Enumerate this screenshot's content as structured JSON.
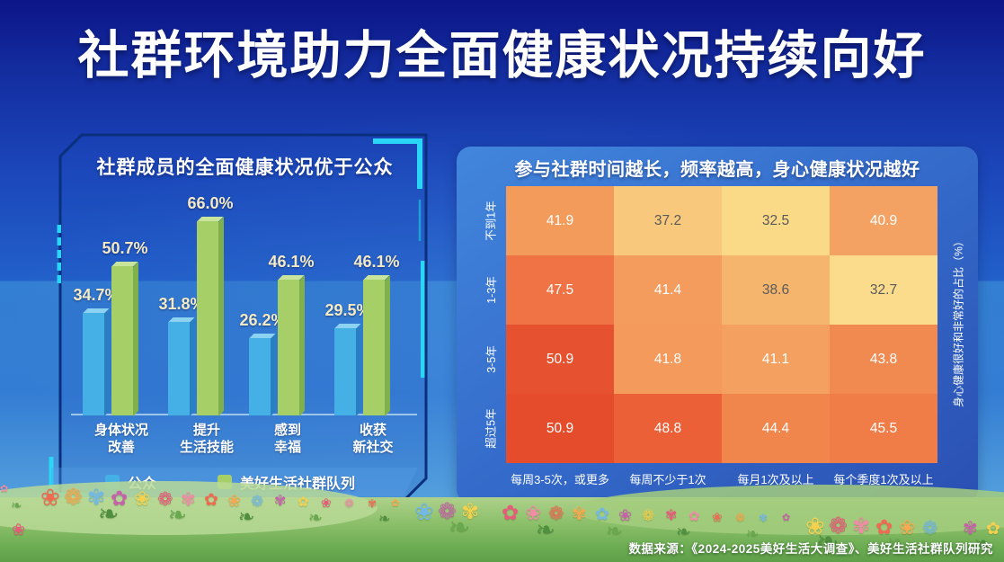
{
  "page": {
    "title": "社群环境助力全面健康状况持续向好",
    "source_note": "数据来源：《2024-2025美好生活大调查》、美好生活社群队列研究"
  },
  "colors": {
    "frame_accent": "#29d6f5",
    "frame_line": "#0a2f7c",
    "bar_value_label": "#f3eac5",
    "heatmap_text_light": "#ffffff",
    "heatmap_text_dark": "#5a5a5a"
  },
  "chart_data": [
    {
      "type": "bar",
      "title": "社群成员的全面健康状况优于公众",
      "categories": [
        [
          "身体状况",
          "改善"
        ],
        [
          "提升",
          "生活技能"
        ],
        [
          "感到",
          "幸福"
        ],
        [
          "收获",
          "新社交"
        ]
      ],
      "series": [
        {
          "name": "公众",
          "color": "#45b0e6",
          "top_color": "#8ed2f2",
          "side_color": "#2a7fc2",
          "values": [
            34.7,
            31.8,
            26.2,
            29.5
          ]
        },
        {
          "name": "美好生活社群队列",
          "color": "#a6d067",
          "top_color": "#c9e59c",
          "side_color": "#7fb04c",
          "values": [
            50.7,
            66.0,
            46.1,
            46.1
          ]
        }
      ],
      "value_suffix": "%",
      "ylim": [
        0,
        70
      ],
      "legend_position": "bottom"
    },
    {
      "type": "heatmap",
      "title": "参与社群时间越长，频率越高，身心健康状况越好",
      "rows": [
        "不到1年",
        "1-3年",
        "3-5年",
        "超过5年"
      ],
      "columns": [
        "每周3-5次，或更多",
        "每周不少于1次",
        "每月1次及以上",
        "每个季度1次及以上"
      ],
      "values": [
        [
          41.9,
          37.2,
          32.5,
          40.9
        ],
        [
          47.5,
          41.4,
          38.6,
          32.7
        ],
        [
          50.9,
          41.8,
          41.1,
          43.8
        ],
        [
          50.9,
          48.8,
          44.4,
          45.5
        ]
      ],
      "cell_colors": [
        [
          "#F29B5B",
          "#F8C87C",
          "#FAD987",
          "#F4A263"
        ],
        [
          "#EF7344",
          "#F39C5D",
          "#F6B56D",
          "#FADC8C"
        ],
        [
          "#E6522F",
          "#F39A5C",
          "#F3A061",
          "#F18A51"
        ],
        [
          "#E44C2B",
          "#EB6037",
          "#F1864D",
          "#F07D47"
        ]
      ],
      "text_light_threshold": 40,
      "ylabel_right": "身心健康很好和非常好的占比（%）"
    }
  ]
}
